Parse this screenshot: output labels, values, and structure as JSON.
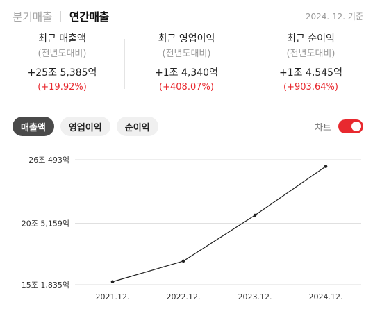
{
  "header": {
    "tab_quarterly": "분기매출",
    "tab_annual": "연간매출",
    "as_of": "2024. 12. 기준"
  },
  "summary": [
    {
      "title": "최근 매출액",
      "subtitle": "(전년도대비)",
      "value": "+25조 5,385억",
      "change": "(+19.92%)"
    },
    {
      "title": "최근 영업이익",
      "subtitle": "(전년도대비)",
      "value": "+1조 4,340억",
      "change": "(+408.07%)"
    },
    {
      "title": "최근 순이익",
      "subtitle": "(전년도대비)",
      "value": "+1조 4,545억",
      "change": "(+903.64%)"
    }
  ],
  "pills": {
    "revenue": "매출액",
    "operating_income": "영업이익",
    "net_income": "순이익",
    "selected": "revenue"
  },
  "toggle": {
    "label": "차트",
    "on": true
  },
  "colors": {
    "accent": "#e8292f",
    "pill_selected": "#4a4a4a",
    "line": "#222222"
  },
  "chart_data": {
    "type": "line",
    "categories": [
      "2021.12.",
      "2022.12.",
      "2023.12.",
      "2024.12."
    ],
    "values": [
      154400,
      172400,
      212200,
      254700
    ],
    "y_ticks": [
      {
        "value": 151835,
        "label": "15조 1,835억"
      },
      {
        "value": 205159,
        "label": "20조 5,159억"
      },
      {
        "value": 260493,
        "label": "26조 493억"
      }
    ],
    "ylim": [
      151835,
      260493
    ],
    "unit": "억원",
    "grid": true
  }
}
